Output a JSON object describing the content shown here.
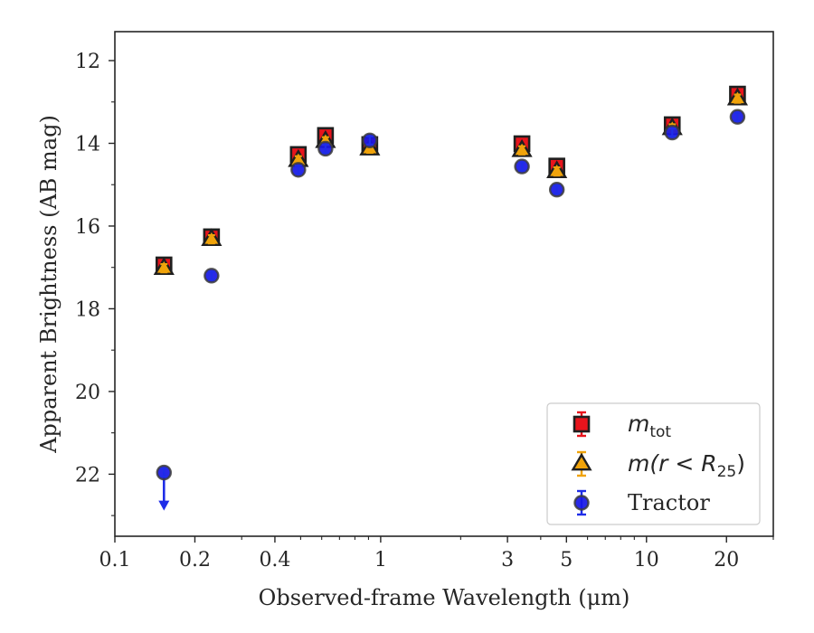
{
  "chart_data": {
    "type": "scatter",
    "xlabel": "Observed-frame Wavelength (μm)",
    "ylabel": "Apparent Brightness (AB mag)",
    "xscale": "log",
    "xlim": [
      0.1,
      30
    ],
    "ylim": [
      23.5,
      11.3
    ],
    "y_inverted": true,
    "grid": false,
    "legend_position": "bottom-right",
    "x_tick_labels": [
      {
        "value": 0.1,
        "label": "0.1"
      },
      {
        "value": 0.2,
        "label": "0.2"
      },
      {
        "value": 0.4,
        "label": "0.4"
      },
      {
        "value": 1,
        "label": "1"
      },
      {
        "value": 3,
        "label": "3"
      },
      {
        "value": 5,
        "label": "5"
      },
      {
        "value": 10,
        "label": "10"
      },
      {
        "value": 20,
        "label": "20"
      }
    ],
    "x_minor_ticks": [
      0.3,
      0.5,
      0.6,
      0.7,
      0.8,
      0.9,
      2,
      4,
      6,
      7,
      8,
      9,
      30
    ],
    "y_tick_labels": [
      {
        "value": 12,
        "label": "12"
      },
      {
        "value": 14,
        "label": "14"
      },
      {
        "value": 16,
        "label": "16"
      },
      {
        "value": 18,
        "label": "18"
      },
      {
        "value": 20,
        "label": "20"
      },
      {
        "value": 22,
        "label": "22"
      }
    ],
    "y_minor_ticks": [
      13,
      15,
      17,
      19,
      21,
      23
    ],
    "series": [
      {
        "name": "m_tot",
        "legend": {
          "base": "m",
          "sub": "tot",
          "suffix": ""
        },
        "marker": "square",
        "fill": "#e8141c",
        "edge": "#1f1f1f",
        "errcolor": "#e8141c",
        "points": [
          {
            "x": 0.153,
            "y": 16.94
          },
          {
            "x": 0.231,
            "y": 16.26
          },
          {
            "x": 0.49,
            "y": 14.27
          },
          {
            "x": 0.62,
            "y": 13.81
          },
          {
            "x": 0.91,
            "y": 14.03
          },
          {
            "x": 3.4,
            "y": 14.01
          },
          {
            "x": 4.6,
            "y": 14.55
          },
          {
            "x": 12.5,
            "y": 13.55
          },
          {
            "x": 22.0,
            "y": 12.81
          }
        ]
      },
      {
        "name": "m(r < R25)",
        "legend": {
          "base": "m(r < R",
          "sub": "25",
          "suffix": ")"
        },
        "marker": "triangle",
        "fill": "#f0a30a",
        "edge": "#1f1f1f",
        "errcolor": "#f0a30a",
        "points": [
          {
            "x": 0.153,
            "y": 17.02
          },
          {
            "x": 0.231,
            "y": 16.32
          },
          {
            "x": 0.49,
            "y": 14.41
          },
          {
            "x": 0.62,
            "y": 13.95
          },
          {
            "x": 0.91,
            "y": 14.13
          },
          {
            "x": 3.4,
            "y": 14.17
          },
          {
            "x": 4.6,
            "y": 14.68
          },
          {
            "x": 12.5,
            "y": 13.64
          },
          {
            "x": 22.0,
            "y": 12.92
          }
        ]
      },
      {
        "name": "Tractor",
        "legend": {
          "base": "Tractor",
          "sub": "",
          "suffix": ""
        },
        "marker": "circle",
        "fill": "#1717e6",
        "edge": "#3c3c3c",
        "errcolor": "#1f2de8",
        "upper_limit_index": 0,
        "points": [
          {
            "x": 0.153,
            "y": 21.96
          },
          {
            "x": 0.231,
            "y": 17.2
          },
          {
            "x": 0.49,
            "y": 14.64
          },
          {
            "x": 0.62,
            "y": 14.13
          },
          {
            "x": 0.91,
            "y": 13.93
          },
          {
            "x": 3.4,
            "y": 14.56
          },
          {
            "x": 4.6,
            "y": 15.12
          },
          {
            "x": 12.5,
            "y": 13.74
          },
          {
            "x": 22.0,
            "y": 13.36
          }
        ]
      }
    ]
  }
}
